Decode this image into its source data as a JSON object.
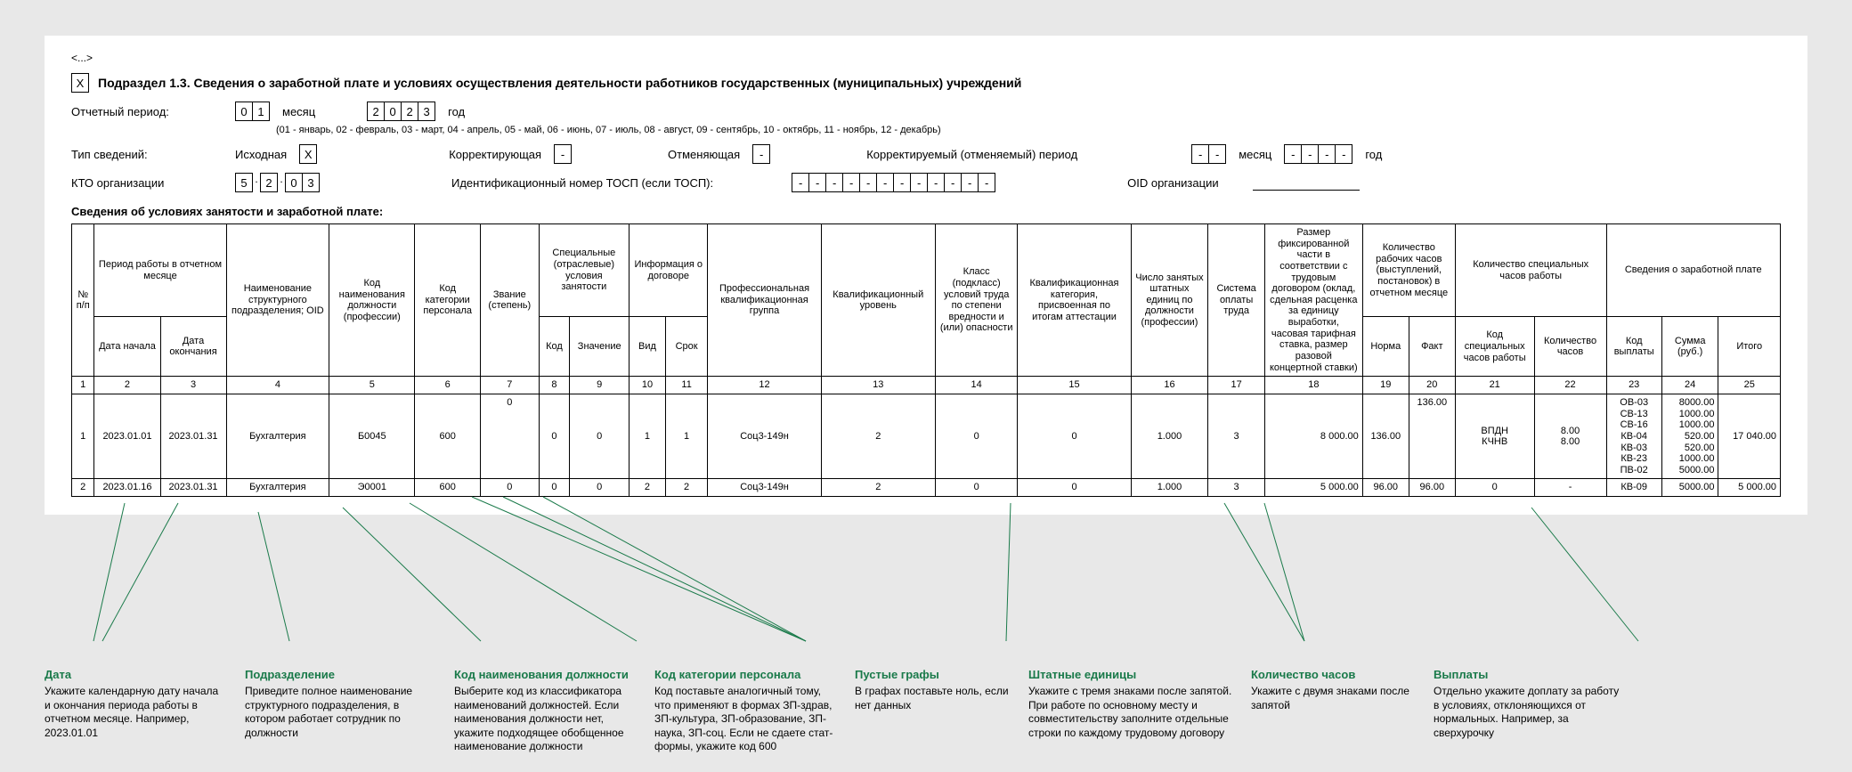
{
  "ellipsis": "<...>",
  "header": {
    "x": "X",
    "title": "Подраздел 1.3. Сведения о заработной плате и условиях осуществления деятельности работников государственных (муниципальных) учреждений"
  },
  "period": {
    "label_period": "Отчетный период:",
    "month_boxes": [
      "0",
      "1"
    ],
    "label_month": "месяц",
    "year_boxes": [
      "2",
      "0",
      "2",
      "3"
    ],
    "label_year": "год",
    "months_legend": "(01 - январь, 02 - февраль, 03 - март, 04 - апрель, 05 - май, 06 - июнь, 07 - июль, 08 - август, 09 - сентябрь, 10 - октябрь, 11 - ноябрь, 12 - декабрь)"
  },
  "type_row": {
    "label": "Тип сведений:",
    "iskh_label": "Исходная",
    "iskh_val": "X",
    "korr_label": "Корректирующая",
    "korr_val": "-",
    "otm_label": "Отменяющая",
    "otm_val": "-",
    "korr_period_label": "Корректируемый (отменяемый) период",
    "month2": [
      "-",
      "-"
    ],
    "label_month2": "месяц",
    "year2": [
      "-",
      "-",
      "-",
      "-"
    ],
    "label_year2": "год"
  },
  "kto_row": {
    "label": "КТО организации",
    "boxes": [
      "5",
      "2",
      "0",
      "3"
    ],
    "tosp_label": "Идентификационный номер ТОСП (если ТОСП):",
    "tosp_boxes": [
      "-",
      "-",
      "-",
      "-",
      "-",
      "-",
      "-",
      "-",
      "-",
      "-",
      "-",
      "-"
    ],
    "oid_label": "OID организации"
  },
  "table_title": "Сведения об условиях занятости и заработной плате:",
  "headers": {
    "num": "№ п/п",
    "period_group": "Период работы в отчетном месяце",
    "date_start": "Дата начала",
    "date_end": "Дата окончания",
    "podrazd": "Наименование структурного подразделения; OID",
    "kod_dolzh": "Код наименования должности (профессии)",
    "kod_pers": "Код категории персонала",
    "zvanie": "Звание (степень)",
    "spec_group": "Специальные (отраслевые) условия занятости",
    "kod": "Код",
    "znach": "Значение",
    "info_dog": "Информация о договоре",
    "vid": "Вид",
    "srok": "Срок",
    "prof": "Профессиональная квалификационная группа",
    "kval_ur": "Квалификационный уровень",
    "klass": "Класс (подкласс) условий труда по степени вредности и (или) опасности",
    "kval_kat": "Квалификационная категория, присвоенная по итогам аттестации",
    "chislo": "Число занятых штатных единиц по должности (профессии)",
    "sistema": "Система оплаты труда",
    "razmer": "Размер фиксированной части в соответствии с трудовым договором (оклад, сдельная расценка за единицу выработки, часовая тарифная ставка, размер разовой концертной ставки)",
    "hours_group": "Количество рабочих часов (выступлений, постановок) в отчетном месяце",
    "norma": "Норма",
    "fakt": "Факт",
    "spec_hours_group": "Количество специальных часов работы",
    "kod_spec": "Код специальных часов работы",
    "kol_hours": "Количество часов",
    "zp_group": "Сведения о заработной плате",
    "kod_vypl": "Код выплаты",
    "summa": "Сумма (руб.)",
    "itogo": "Итого"
  },
  "numrow": [
    "1",
    "2",
    "3",
    "4",
    "5",
    "6",
    "7",
    "8",
    "9",
    "10",
    "11",
    "12",
    "13",
    "14",
    "15",
    "16",
    "17",
    "18",
    "19",
    "20",
    "21",
    "22",
    "23",
    "24",
    "25"
  ],
  "rows": [
    {
      "n": "1",
      "d1": "2023.01.01",
      "d2": "2023.01.31",
      "pod": "Бухгалтерия",
      "kd": "Б0045",
      "kp": "600",
      "zv": "0",
      "k": "0",
      "zn": "0",
      "vid": "1",
      "srok": "1",
      "prof": "Соц3-149н",
      "ku": "2",
      "kl": "0",
      "kk": "0",
      "ch": "1.000",
      "so": "3",
      "rz": "8 000.00",
      "nr": "136.00",
      "ft": "136.00",
      "ksh": "ВПДН\nКЧНВ",
      "kh": "8.00\n8.00",
      "kv": "ОВ-03\nСВ-13\nСВ-16\nКВ-04\nКВ-03\nКВ-23\nПВ-02",
      "su": "8000.00\n1000.00\n1000.00\n520.00\n520.00\n1000.00\n5000.00",
      "it": "17 040.00"
    },
    {
      "n": "2",
      "d1": "2023.01.16",
      "d2": "2023.01.31",
      "pod": "Бухгалтерия",
      "kd": "Э0001",
      "kp": "600",
      "zv": "0",
      "k": "0",
      "zn": "0",
      "vid": "2",
      "srok": "2",
      "prof": "Соц3-149н",
      "ku": "2",
      "kl": "0",
      "kk": "0",
      "ch": "1.000",
      "so": "3",
      "rz": "5 000.00",
      "nr": "96.00",
      "ft": "96.00",
      "ksh": "0",
      "kh": "-",
      "kv": "КВ-09",
      "su": "5000.00",
      "it": "5 000.00"
    }
  ],
  "annotations": [
    {
      "title": "Дата",
      "desc": "Укажите календарную дату начала и окончания периода работы в отчетном месяце. Например, 2023.01.01"
    },
    {
      "title": "Подразделение",
      "desc": "Приведите полное наименование структурного подразделения, в котором работает сотрудник по должности"
    },
    {
      "title": "Код наименования должности",
      "desc": "Выберите код из классификатора наименований должностей. Если наименования должности нет, укажите подходящее обобщенное наименование должности"
    },
    {
      "title": "Код категории персонала",
      "desc": "Код поставьте аналогичный тому, что применяют в формах ЗП-здрав, ЗП-культура, ЗП-образование, ЗП-наука, ЗП-соц. Если не сдаете стат-формы, укажите код 600"
    },
    {
      "title": "Пустые графы",
      "desc": "В графах поставьте ноль, если нет данных"
    },
    {
      "title": "Штатные единицы",
      "desc": "Укажите с тремя знаками после запятой. При работе по основному месту и совместительству заполните отдельные строки по каждому трудовому договору"
    },
    {
      "title": "Количество часов",
      "desc": "Укажите с двумя знаками после запятой"
    },
    {
      "title": "Выплаты",
      "desc": "Отдельно укажите доплату за работу в условиях, отклоняющихся от нормальных. Например, за сверхурочку"
    }
  ],
  "colors": {
    "anno": "#1a7a4a",
    "bg": "#e8e8e8"
  }
}
